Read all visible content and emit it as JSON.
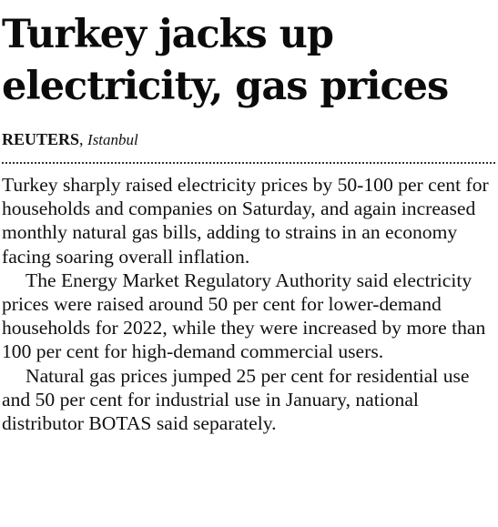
{
  "article": {
    "headline": "Turkey jacks up electricity, gas prices",
    "byline": {
      "agency": "REUTERS",
      "separator": ", ",
      "location": "Istanbul"
    },
    "paragraphs": [
      "Turkey sharply raised electricity prices by 50-100 per cent for households and companies on Saturday, and again increased monthly natural gas bills, adding to strains in an economy facing soaring overall inflation.",
      "The Energy Market Regulatory Authority said electricity prices were raised around 50 per cent for lower-demand households for 2022, while they were increased by more than 100 per cent for high-demand commercial users.",
      "Natural gas prices jumped 25 per cent for residential use and 50 per cent for industrial use in January, national distributor BOTAS said separately."
    ]
  }
}
